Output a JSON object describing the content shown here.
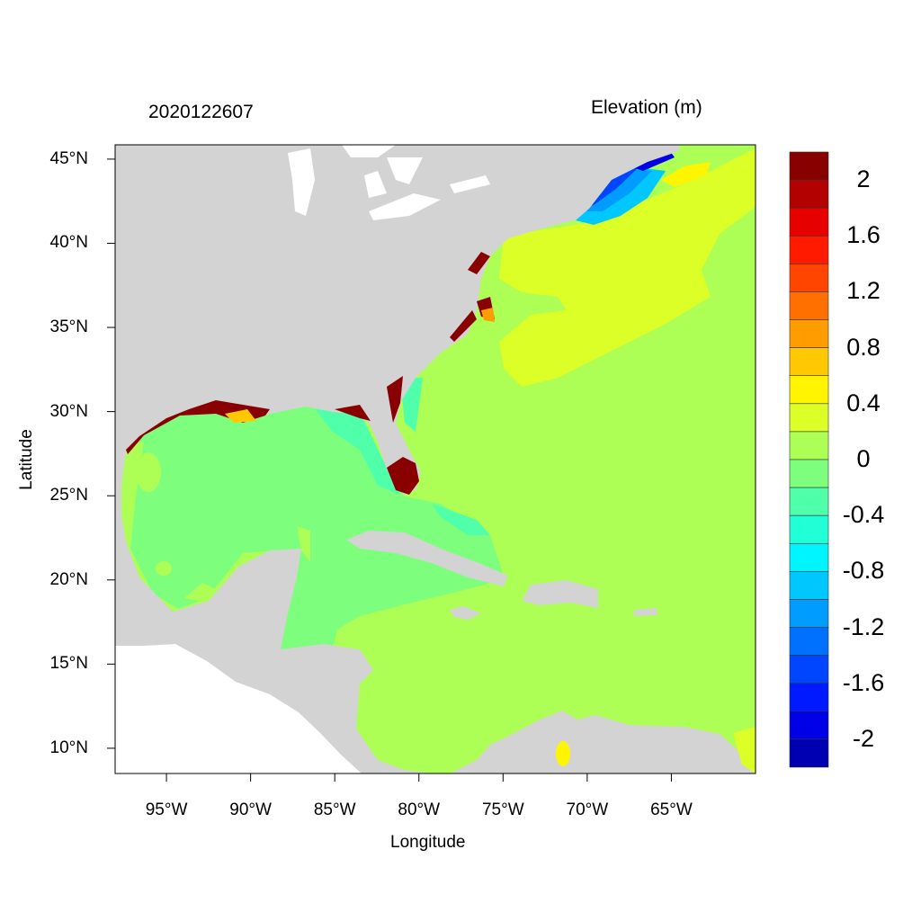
{
  "header": {
    "timestamp": "2020122607",
    "variable_title": "Elevation (m)"
  },
  "axes": {
    "xlabel": "Longitude",
    "ylabel": "Latitude",
    "lon_range": [
      -98.05,
      -60.0
    ],
    "lat_range": [
      8.5,
      45.85
    ],
    "x_ticks": [
      {
        "value": -95,
        "label": "95°W"
      },
      {
        "value": -90,
        "label": "90°W"
      },
      {
        "value": -85,
        "label": "85°W"
      },
      {
        "value": -80,
        "label": "80°W"
      },
      {
        "value": -75,
        "label": "75°W"
      },
      {
        "value": -70,
        "label": "70°W"
      },
      {
        "value": -65,
        "label": "65°W"
      }
    ],
    "y_ticks": [
      {
        "value": 45,
        "label": "45°N"
      },
      {
        "value": 40,
        "label": "40°N"
      },
      {
        "value": 35,
        "label": "35°N"
      },
      {
        "value": 30,
        "label": "30°N"
      },
      {
        "value": 25,
        "label": "25°N"
      },
      {
        "value": 20,
        "label": "20°N"
      },
      {
        "value": 15,
        "label": "15°N"
      },
      {
        "value": 10,
        "label": "10°N"
      }
    ]
  },
  "colorbar": {
    "colors": [
      "#880000",
      "#B30000",
      "#E60000",
      "#FF1A00",
      "#FF4500",
      "#FF7000",
      "#FF9C00",
      "#FFC800",
      "#FFF500",
      "#DCFF28",
      "#ADFF55",
      "#7DFF7D",
      "#50FFAA",
      "#21FFD6",
      "#00F5FF",
      "#00C8FF",
      "#009CFF",
      "#0070FF",
      "#0045FF",
      "#001AFF",
      "#0000E6",
      "#0000B3"
    ],
    "labels": [
      {
        "boundary": 1,
        "text": "2"
      },
      {
        "boundary": 3,
        "text": "1.6"
      },
      {
        "boundary": 5,
        "text": "1.2"
      },
      {
        "boundary": 7,
        "text": "0.8"
      },
      {
        "boundary": 9,
        "text": "0.4"
      },
      {
        "boundary": 11,
        "text": "0"
      },
      {
        "boundary": 13,
        "text": "-0.4"
      },
      {
        "boundary": 15,
        "text": "-0.8"
      },
      {
        "boundary": 17,
        "text": "-1.2"
      },
      {
        "boundary": 19,
        "text": "-1.6"
      },
      {
        "boundary": 21,
        "text": "-2"
      }
    ]
  },
  "colors": {
    "land": "#D3D3D3",
    "lakes_pacific": "#FFFFFF",
    "atlantic": "#ADFF55",
    "gulf": "#7DFF7D",
    "shelf_high": "#DCFF28",
    "marsh": "#880000"
  }
}
